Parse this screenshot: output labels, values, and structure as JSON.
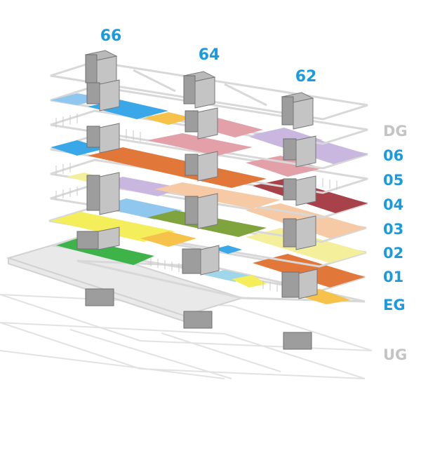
{
  "buildings": [
    {
      "label": "66"
    },
    {
      "label": "64"
    },
    {
      "label": "62"
    }
  ],
  "floors": [
    {
      "label": "DG",
      "color": "#c4c4c4"
    },
    {
      "label": "06",
      "color": "#1a9be0"
    },
    {
      "label": "05",
      "color": "#1a9be0"
    },
    {
      "label": "04",
      "color": "#1a9be0"
    },
    {
      "label": "03",
      "color": "#1a9be0"
    },
    {
      "label": "02",
      "color": "#1a9be0"
    },
    {
      "label": "01",
      "color": "#1a9be0"
    },
    {
      "label": "EG",
      "color": "#1a9be0"
    },
    {
      "label": "UG",
      "color": "#c4c4c4"
    }
  ],
  "zone_colors": {
    "blue": "#3aa8e8",
    "light_blue": "#8fc7ee",
    "yellow_orange": "#f7c24a",
    "pink": "#e3a0a8",
    "lavender": "#c9b7e0",
    "orange": "#e2773a",
    "dark_red": "#a8424a",
    "peach": "#f6caa4",
    "olive_green": "#7fa43e",
    "yellow": "#f3ee5a",
    "pale_yellow": "#f4ef9a",
    "green": "#3db34a",
    "cyan": "#9fd6ea"
  }
}
